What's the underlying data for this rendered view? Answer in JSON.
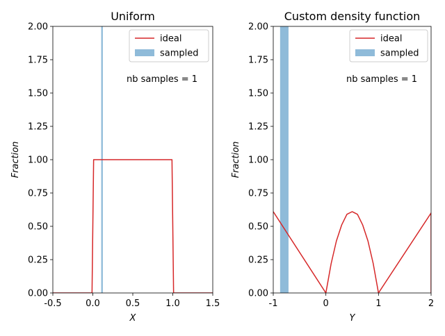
{
  "chart_data": [
    {
      "type": "line+bar",
      "title": "Uniform",
      "xlabel": "X",
      "ylabel": "Fraction",
      "xlim": [
        -0.5,
        1.5
      ],
      "ylim": [
        0,
        2
      ],
      "xticks": [
        "-0.5",
        "0.0",
        "0.5",
        "1.0",
        "1.5"
      ],
      "xtick_values": [
        -0.5,
        0.0,
        0.5,
        1.0,
        1.5
      ],
      "yticks": [
        "0.00",
        "0.25",
        "0.50",
        "0.75",
        "1.00",
        "1.25",
        "1.50",
        "1.75",
        "2.00"
      ],
      "ytick_values": [
        0,
        0.25,
        0.5,
        0.75,
        1.0,
        1.25,
        1.5,
        1.75,
        2.0
      ],
      "annotation": "nb samples = 1",
      "legend": {
        "placement": "top-right",
        "entries": [
          {
            "label": "ideal",
            "kind": "line",
            "color": "#d62728"
          },
          {
            "label": "sampled",
            "kind": "patch",
            "color": "#1f77b4"
          }
        ]
      },
      "series": [
        {
          "name": "ideal",
          "kind": "line",
          "color": "#d62728",
          "x": [
            -0.5,
            -0.01,
            0.01,
            0.99,
            1.01,
            1.5
          ],
          "y": [
            0,
            0,
            1,
            1,
            0,
            0
          ]
        },
        {
          "name": "sampled",
          "kind": "bar",
          "color": "#1f77b4",
          "opacity": 0.5,
          "bars": [
            {
              "x0": 0.105,
              "x1": 0.125,
              "height": 2.0
            }
          ]
        }
      ]
    },
    {
      "type": "line+bar",
      "title": "Custom density function",
      "xlabel": "Y",
      "ylabel": "Fraction",
      "xlim": [
        -1,
        2
      ],
      "ylim": [
        0,
        2
      ],
      "xticks": [
        "-1",
        "0",
        "1",
        "2"
      ],
      "xtick_values": [
        -1,
        0,
        1,
        2
      ],
      "yticks": [
        "0.00",
        "0.25",
        "0.50",
        "0.75",
        "1.00",
        "1.25",
        "1.50",
        "1.75",
        "2.00"
      ],
      "ytick_values": [
        0,
        0.25,
        0.5,
        0.75,
        1.0,
        1.25,
        1.5,
        1.75,
        2.0
      ],
      "annotation": "nb samples = 1",
      "legend": {
        "placement": "top-right",
        "entries": [
          {
            "label": "ideal",
            "kind": "line",
            "color": "#d62728"
          },
          {
            "label": "sampled",
            "kind": "patch",
            "color": "#1f77b4"
          }
        ]
      },
      "series": [
        {
          "name": "ideal",
          "kind": "line",
          "color": "#d62728",
          "x": [
            -1,
            0,
            0.1,
            0.2,
            0.3,
            0.4,
            0.5,
            0.6,
            0.7,
            0.8,
            0.9,
            1.0,
            2.0,
            2.0
          ],
          "y": [
            0.61,
            0.0,
            0.22,
            0.39,
            0.51,
            0.59,
            0.61,
            0.59,
            0.51,
            0.39,
            0.22,
            0.0,
            0.6,
            0.0
          ]
        },
        {
          "name": "sampled",
          "kind": "bar",
          "color": "#1f77b4",
          "opacity": 0.5,
          "bars": [
            {
              "x0": -0.87,
              "x1": -0.71,
              "height": 2.0
            }
          ]
        }
      ]
    }
  ]
}
